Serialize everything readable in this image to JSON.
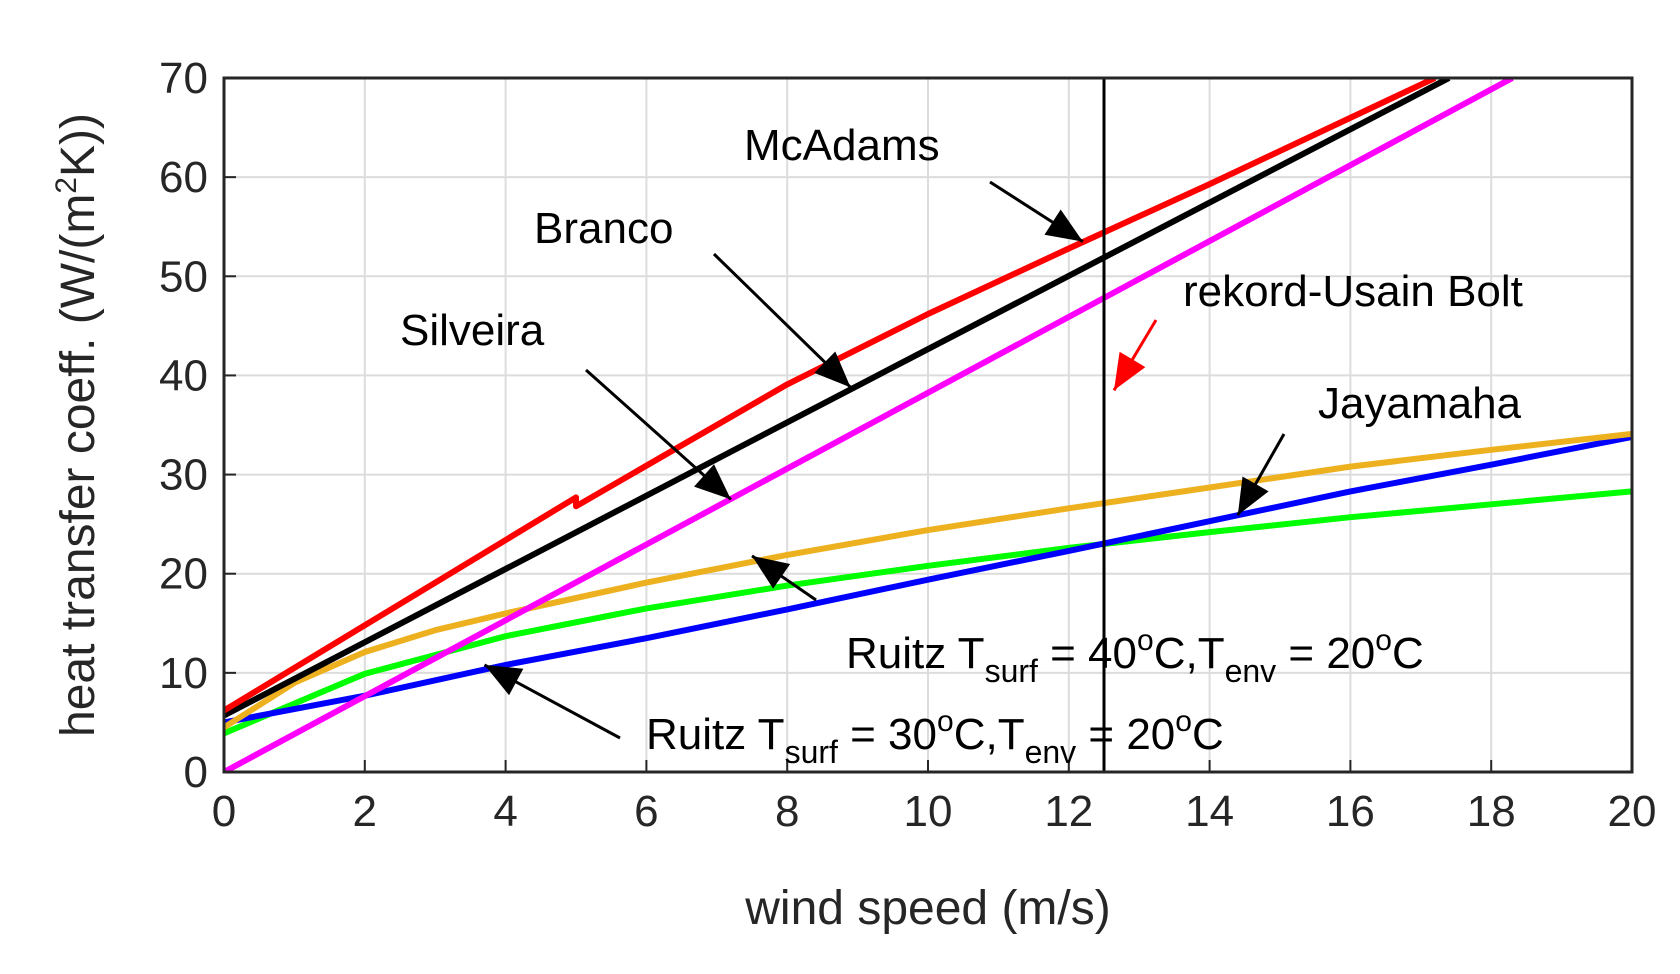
{
  "chart_data": {
    "type": "line",
    "title": "",
    "xlabel": "wind speed (m/s)",
    "ylabel_parts": {
      "pre": "heat transfer coeff. (W/(m",
      "sup": "2",
      "post": "K))"
    },
    "xlim": [
      0,
      20
    ],
    "ylim": [
      0,
      70
    ],
    "xticks": [
      0,
      2,
      4,
      6,
      8,
      10,
      12,
      14,
      16,
      18,
      20
    ],
    "yticks": [
      0,
      10,
      20,
      30,
      40,
      50,
      60,
      70
    ],
    "grid": true,
    "series": [
      {
        "name": "Ruitz Tsurf = 30oC, Tenv = 20oC",
        "color": "#00ff00",
        "x": [
          0,
          2,
          4,
          6,
          8,
          10,
          12,
          14,
          16,
          18,
          20
        ],
        "y": [
          3.9,
          9.9,
          13.7,
          16.5,
          18.8,
          20.8,
          22.6,
          24.2,
          25.7,
          27.0,
          28.3
        ]
      },
      {
        "name": "Ruitz Tsurf = 40oC, Tenv = 20oC",
        "color": "#0000ff",
        "x": [
          0,
          2,
          4,
          6,
          8,
          10,
          12,
          14,
          16,
          18,
          20
        ],
        "y": [
          5.0,
          7.7,
          10.8,
          13.5,
          16.4,
          19.4,
          22.3,
          25.3,
          28.3,
          31.0,
          33.8
        ]
      },
      {
        "name": "Jayamaha",
        "color": "#edb120",
        "x": [
          0,
          1,
          2,
          3,
          4,
          6,
          8,
          10,
          12,
          14,
          16,
          18,
          20
        ],
        "y": [
          4.5,
          9.0,
          12.1,
          14.3,
          16.0,
          19.1,
          21.9,
          24.4,
          26.6,
          28.7,
          30.8,
          32.5,
          34.1
        ]
      },
      {
        "name": "Silveira",
        "color": "#ff00ff",
        "x": [
          0,
          18.3
        ],
        "y": [
          0,
          70
        ]
      },
      {
        "name": "Branco",
        "color": "#000000",
        "x": [
          0,
          17.4
        ],
        "y": [
          5.7,
          70
        ]
      },
      {
        "name": "McAdams",
        "color": "#ff0000",
        "x": [
          0,
          5.0,
          5.0,
          8,
          10,
          12,
          14,
          17.2
        ],
        "y": [
          6.2,
          27.7,
          26.8,
          39.1,
          46.2,
          52.8,
          59.3,
          70
        ]
      }
    ],
    "vline": {
      "x": 12.5,
      "label": "rekord-Usain Bolt",
      "label_color": "#ff0000"
    },
    "annotations": [
      {
        "parts": {
          "main": "McAdams"
        },
        "arrow_to": [
          12.2,
          53.5
        ]
      },
      {
        "parts": {
          "main": "Branco"
        },
        "arrow_to": [
          8.9,
          38.8
        ]
      },
      {
        "parts": {
          "main": "Silveira"
        },
        "arrow_to": [
          7.2,
          27.5
        ]
      },
      {
        "parts": {
          "main": "Jayamaha"
        },
        "arrow_to": [
          14.4,
          25.9
        ]
      },
      {
        "parts": {
          "a": "Ruitz T",
          "s1": "surf",
          "b": " = 40",
          "o1": "o",
          "c": "C,T",
          "s2": "env",
          "d": " = 20",
          "o2": "o",
          "e": "C"
        },
        "arrow_to": [
          7.5,
          21.8
        ]
      },
      {
        "parts": {
          "a": "Ruitz T",
          "s1": "surf",
          "b": " = 30",
          "o1": "o",
          "c": "C,T",
          "s2": "env",
          "d": " = 20",
          "o2": "o",
          "e": "C"
        },
        "arrow_to": [
          3.7,
          10.8
        ]
      }
    ]
  }
}
